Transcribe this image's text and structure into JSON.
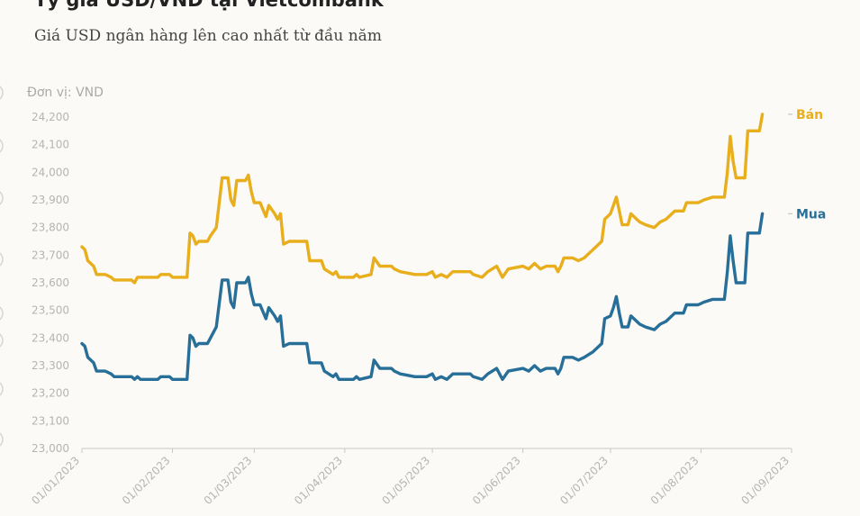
{
  "title": "Tỷ giá USD/VND tại Vietcombank",
  "subtitle": "Giá USD ngân hàng lên cao nhất từ đầu năm",
  "chart_data": {
    "type": "line",
    "unit_label": "Đơn vị: VND",
    "ylim": [
      23000,
      24200
    ],
    "yticks": [
      "23,000",
      "23,100",
      "23,200",
      "23,300",
      "23,400",
      "23,500",
      "23,600",
      "23,700",
      "23,800",
      "23,900",
      "24,000",
      "24,100",
      "24,200"
    ],
    "xlim": [
      "2023-01-01",
      "2023-09-01"
    ],
    "xticks": [
      {
        "date": "2023-01-01",
        "label": "01/01/2023"
      },
      {
        "date": "2023-02-01",
        "label": "01/02/2023"
      },
      {
        "date": "2023-03-01",
        "label": "01/03/2023"
      },
      {
        "date": "2023-04-01",
        "label": "01/04/2023"
      },
      {
        "date": "2023-05-01",
        "label": "01/05/2023"
      },
      {
        "date": "2023-06-01",
        "label": "01/06/2023"
      },
      {
        "date": "2023-07-01",
        "label": "01/07/2023"
      },
      {
        "date": "2023-08-01",
        "label": "01/08/2023"
      },
      {
        "date": "2023-09-01",
        "label": "01/09/2023"
      }
    ],
    "grid": false,
    "series": [
      {
        "name": "Bán",
        "color": "#e8ae1c",
        "points": [
          [
            "2023-01-01",
            23730
          ],
          [
            "2023-01-02",
            23720
          ],
          [
            "2023-01-03",
            23680
          ],
          [
            "2023-01-05",
            23660
          ],
          [
            "2023-01-06",
            23630
          ],
          [
            "2023-01-09",
            23630
          ],
          [
            "2023-01-11",
            23620
          ],
          [
            "2023-01-12",
            23610
          ],
          [
            "2023-01-18",
            23610
          ],
          [
            "2023-01-19",
            23600
          ],
          [
            "2023-01-20",
            23620
          ],
          [
            "2023-01-27",
            23620
          ],
          [
            "2023-01-28",
            23630
          ],
          [
            "2023-01-31",
            23630
          ],
          [
            "2023-02-01",
            23620
          ],
          [
            "2023-02-05",
            23620
          ],
          [
            "2023-02-06",
            23620
          ],
          [
            "2023-02-07",
            23780
          ],
          [
            "2023-02-08",
            23770
          ],
          [
            "2023-02-09",
            23740
          ],
          [
            "2023-02-10",
            23750
          ],
          [
            "2023-02-13",
            23750
          ],
          [
            "2023-02-14",
            23770
          ],
          [
            "2023-02-16",
            23800
          ],
          [
            "2023-02-18",
            23980
          ],
          [
            "2023-02-20",
            23980
          ],
          [
            "2023-02-21",
            23900
          ],
          [
            "2023-02-22",
            23880
          ],
          [
            "2023-02-23",
            23970
          ],
          [
            "2023-02-26",
            23970
          ],
          [
            "2023-02-27",
            23990
          ],
          [
            "2023-02-28",
            23930
          ],
          [
            "2023-03-01",
            23890
          ],
          [
            "2023-03-03",
            23890
          ],
          [
            "2023-03-05",
            23840
          ],
          [
            "2023-03-06",
            23880
          ],
          [
            "2023-03-08",
            23850
          ],
          [
            "2023-03-09",
            23830
          ],
          [
            "2023-03-10",
            23850
          ],
          [
            "2023-03-11",
            23740
          ],
          [
            "2023-03-13",
            23750
          ],
          [
            "2023-03-19",
            23750
          ],
          [
            "2023-03-20",
            23680
          ],
          [
            "2023-03-24",
            23680
          ],
          [
            "2023-03-25",
            23650
          ],
          [
            "2023-03-28",
            23630
          ],
          [
            "2023-03-29",
            23640
          ],
          [
            "2023-03-30",
            23620
          ],
          [
            "2023-04-04",
            23620
          ],
          [
            "2023-04-05",
            23630
          ],
          [
            "2023-04-06",
            23620
          ],
          [
            "2023-04-10",
            23630
          ],
          [
            "2023-04-11",
            23690
          ],
          [
            "2023-04-13",
            23660
          ],
          [
            "2023-04-17",
            23660
          ],
          [
            "2023-04-18",
            23650
          ],
          [
            "2023-04-20",
            23640
          ],
          [
            "2023-04-25",
            23630
          ],
          [
            "2023-04-29",
            23630
          ],
          [
            "2023-05-01",
            23640
          ],
          [
            "2023-05-02",
            23620
          ],
          [
            "2023-05-04",
            23630
          ],
          [
            "2023-05-06",
            23620
          ],
          [
            "2023-05-08",
            23640
          ],
          [
            "2023-05-14",
            23640
          ],
          [
            "2023-05-15",
            23630
          ],
          [
            "2023-05-18",
            23620
          ],
          [
            "2023-05-20",
            23640
          ],
          [
            "2023-05-23",
            23660
          ],
          [
            "2023-05-25",
            23620
          ],
          [
            "2023-05-27",
            23650
          ],
          [
            "2023-06-01",
            23660
          ],
          [
            "2023-06-03",
            23650
          ],
          [
            "2023-06-05",
            23670
          ],
          [
            "2023-06-07",
            23650
          ],
          [
            "2023-06-09",
            23660
          ],
          [
            "2023-06-12",
            23660
          ],
          [
            "2023-06-13",
            23640
          ],
          [
            "2023-06-14",
            23660
          ],
          [
            "2023-06-15",
            23690
          ],
          [
            "2023-06-18",
            23690
          ],
          [
            "2023-06-20",
            23680
          ],
          [
            "2023-06-22",
            23690
          ],
          [
            "2023-06-25",
            23720
          ],
          [
            "2023-06-28",
            23750
          ],
          [
            "2023-06-29",
            23830
          ],
          [
            "2023-07-01",
            23850
          ],
          [
            "2023-07-02",
            23880
          ],
          [
            "2023-07-03",
            23910
          ],
          [
            "2023-07-04",
            23860
          ],
          [
            "2023-07-05",
            23810
          ],
          [
            "2023-07-07",
            23810
          ],
          [
            "2023-07-08",
            23850
          ],
          [
            "2023-07-10",
            23830
          ],
          [
            "2023-07-11",
            23820
          ],
          [
            "2023-07-13",
            23810
          ],
          [
            "2023-07-16",
            23800
          ],
          [
            "2023-07-18",
            23820
          ],
          [
            "2023-07-20",
            23830
          ],
          [
            "2023-07-23",
            23860
          ],
          [
            "2023-07-26",
            23860
          ],
          [
            "2023-07-27",
            23890
          ],
          [
            "2023-07-31",
            23890
          ],
          [
            "2023-08-02",
            23900
          ],
          [
            "2023-08-05",
            23910
          ],
          [
            "2023-08-09",
            23910
          ],
          [
            "2023-08-10",
            24000
          ],
          [
            "2023-08-11",
            24130
          ],
          [
            "2023-08-12",
            24040
          ],
          [
            "2023-08-13",
            23980
          ],
          [
            "2023-08-16",
            23980
          ],
          [
            "2023-08-17",
            24150
          ],
          [
            "2023-08-21",
            24150
          ],
          [
            "2023-08-22",
            24210
          ]
        ]
      },
      {
        "name": "Mua",
        "color": "#276f99",
        "points": [
          [
            "2023-01-01",
            23380
          ],
          [
            "2023-01-02",
            23370
          ],
          [
            "2023-01-03",
            23330
          ],
          [
            "2023-01-05",
            23310
          ],
          [
            "2023-01-06",
            23280
          ],
          [
            "2023-01-09",
            23280
          ],
          [
            "2023-01-11",
            23270
          ],
          [
            "2023-01-12",
            23260
          ],
          [
            "2023-01-18",
            23260
          ],
          [
            "2023-01-19",
            23250
          ],
          [
            "2023-01-20",
            23260
          ],
          [
            "2023-01-21",
            23250
          ],
          [
            "2023-01-27",
            23250
          ],
          [
            "2023-01-28",
            23260
          ],
          [
            "2023-01-31",
            23260
          ],
          [
            "2023-02-01",
            23250
          ],
          [
            "2023-02-06",
            23250
          ],
          [
            "2023-02-07",
            23410
          ],
          [
            "2023-02-08",
            23400
          ],
          [
            "2023-02-09",
            23370
          ],
          [
            "2023-02-10",
            23380
          ],
          [
            "2023-02-13",
            23380
          ],
          [
            "2023-02-14",
            23400
          ],
          [
            "2023-02-16",
            23440
          ],
          [
            "2023-02-18",
            23610
          ],
          [
            "2023-02-20",
            23610
          ],
          [
            "2023-02-21",
            23530
          ],
          [
            "2023-02-22",
            23510
          ],
          [
            "2023-02-23",
            23600
          ],
          [
            "2023-02-26",
            23600
          ],
          [
            "2023-02-27",
            23620
          ],
          [
            "2023-02-28",
            23560
          ],
          [
            "2023-03-01",
            23520
          ],
          [
            "2023-03-03",
            23520
          ],
          [
            "2023-03-05",
            23470
          ],
          [
            "2023-03-06",
            23510
          ],
          [
            "2023-03-08",
            23480
          ],
          [
            "2023-03-09",
            23460
          ],
          [
            "2023-03-10",
            23480
          ],
          [
            "2023-03-11",
            23370
          ],
          [
            "2023-03-13",
            23380
          ],
          [
            "2023-03-19",
            23380
          ],
          [
            "2023-03-20",
            23310
          ],
          [
            "2023-03-24",
            23310
          ],
          [
            "2023-03-25",
            23280
          ],
          [
            "2023-03-28",
            23260
          ],
          [
            "2023-03-29",
            23270
          ],
          [
            "2023-03-30",
            23250
          ],
          [
            "2023-04-04",
            23250
          ],
          [
            "2023-04-05",
            23260
          ],
          [
            "2023-04-06",
            23250
          ],
          [
            "2023-04-10",
            23260
          ],
          [
            "2023-04-11",
            23320
          ],
          [
            "2023-04-13",
            23290
          ],
          [
            "2023-04-17",
            23290
          ],
          [
            "2023-04-18",
            23280
          ],
          [
            "2023-04-20",
            23270
          ],
          [
            "2023-04-25",
            23260
          ],
          [
            "2023-04-29",
            23260
          ],
          [
            "2023-05-01",
            23270
          ],
          [
            "2023-05-02",
            23250
          ],
          [
            "2023-05-04",
            23260
          ],
          [
            "2023-05-06",
            23250
          ],
          [
            "2023-05-08",
            23270
          ],
          [
            "2023-05-14",
            23270
          ],
          [
            "2023-05-15",
            23260
          ],
          [
            "2023-05-18",
            23250
          ],
          [
            "2023-05-20",
            23270
          ],
          [
            "2023-05-23",
            23290
          ],
          [
            "2023-05-25",
            23250
          ],
          [
            "2023-05-27",
            23280
          ],
          [
            "2023-06-01",
            23290
          ],
          [
            "2023-06-03",
            23280
          ],
          [
            "2023-06-05",
            23300
          ],
          [
            "2023-06-07",
            23280
          ],
          [
            "2023-06-09",
            23290
          ],
          [
            "2023-06-12",
            23290
          ],
          [
            "2023-06-13",
            23270
          ],
          [
            "2023-06-14",
            23290
          ],
          [
            "2023-06-15",
            23330
          ],
          [
            "2023-06-18",
            23330
          ],
          [
            "2023-06-20",
            23320
          ],
          [
            "2023-06-22",
            23330
          ],
          [
            "2023-06-25",
            23350
          ],
          [
            "2023-06-28",
            23380
          ],
          [
            "2023-06-29",
            23470
          ],
          [
            "2023-07-01",
            23480
          ],
          [
            "2023-07-02",
            23510
          ],
          [
            "2023-07-03",
            23550
          ],
          [
            "2023-07-04",
            23490
          ],
          [
            "2023-07-05",
            23440
          ],
          [
            "2023-07-07",
            23440
          ],
          [
            "2023-07-08",
            23480
          ],
          [
            "2023-07-10",
            23460
          ],
          [
            "2023-07-11",
            23450
          ],
          [
            "2023-07-13",
            23440
          ],
          [
            "2023-07-16",
            23430
          ],
          [
            "2023-07-18",
            23450
          ],
          [
            "2023-07-20",
            23460
          ],
          [
            "2023-07-23",
            23490
          ],
          [
            "2023-07-26",
            23490
          ],
          [
            "2023-07-27",
            23520
          ],
          [
            "2023-07-31",
            23520
          ],
          [
            "2023-08-02",
            23530
          ],
          [
            "2023-08-05",
            23540
          ],
          [
            "2023-08-09",
            23540
          ],
          [
            "2023-08-10",
            23640
          ],
          [
            "2023-08-11",
            23770
          ],
          [
            "2023-08-12",
            23680
          ],
          [
            "2023-08-13",
            23600
          ],
          [
            "2023-08-16",
            23600
          ],
          [
            "2023-08-17",
            23780
          ],
          [
            "2023-08-21",
            23780
          ],
          [
            "2023-08-22",
            23850
          ]
        ]
      }
    ]
  }
}
